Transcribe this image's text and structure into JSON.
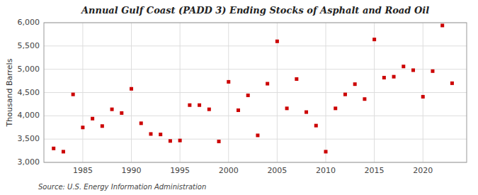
{
  "chart_data": {
    "type": "scatter",
    "title": "Annual Gulf Coast (PADD 3) Ending Stocks of Asphalt and Road Oil",
    "y_label": "Thousand Barrels",
    "annotations": [
      "Source: U.S. Energy Information Administration"
    ],
    "x": [
      1982,
      1983,
      1984,
      1985,
      1986,
      1987,
      1988,
      1989,
      1990,
      1991,
      1992,
      1993,
      1994,
      1995,
      1996,
      1997,
      1998,
      1999,
      2000,
      2001,
      2002,
      2003,
      2004,
      2005,
      2006,
      2007,
      2008,
      2009,
      2010,
      2011,
      2012,
      2013,
      2014,
      2015,
      2016,
      2017,
      2018,
      2019,
      2020,
      2021,
      2022,
      2023
    ],
    "values": [
      3300,
      3230,
      4460,
      3750,
      3940,
      3780,
      4140,
      4060,
      4580,
      3840,
      3610,
      3600,
      3460,
      3470,
      4230,
      4230,
      4140,
      3450,
      4730,
      4120,
      4440,
      3580,
      4690,
      5600,
      4160,
      4790,
      4080,
      3790,
      3230,
      4160,
      4460,
      4680,
      4360,
      5640,
      4820,
      4840,
      5060,
      4980,
      4410,
      4960,
      5940,
      4700
    ],
    "color": "#cc0000",
    "marker": "square",
    "xlim": [
      1981,
      2024.5
    ],
    "xticks": [
      1985,
      1990,
      1995,
      2000,
      2005,
      2010,
      2015,
      2020
    ],
    "ylim": [
      3000,
      6000
    ],
    "yticks": [
      {
        "value": 3000,
        "label": "3,000"
      },
      {
        "value": 3500,
        "label": "3,500"
      },
      {
        "value": 4000,
        "label": "4,000"
      },
      {
        "value": 4500,
        "label": "4,500"
      },
      {
        "value": 5000,
        "label": "5,000"
      },
      {
        "value": 5500,
        "label": "5,500"
      },
      {
        "value": 6000,
        "label": "6,000"
      }
    ],
    "grid": true
  }
}
